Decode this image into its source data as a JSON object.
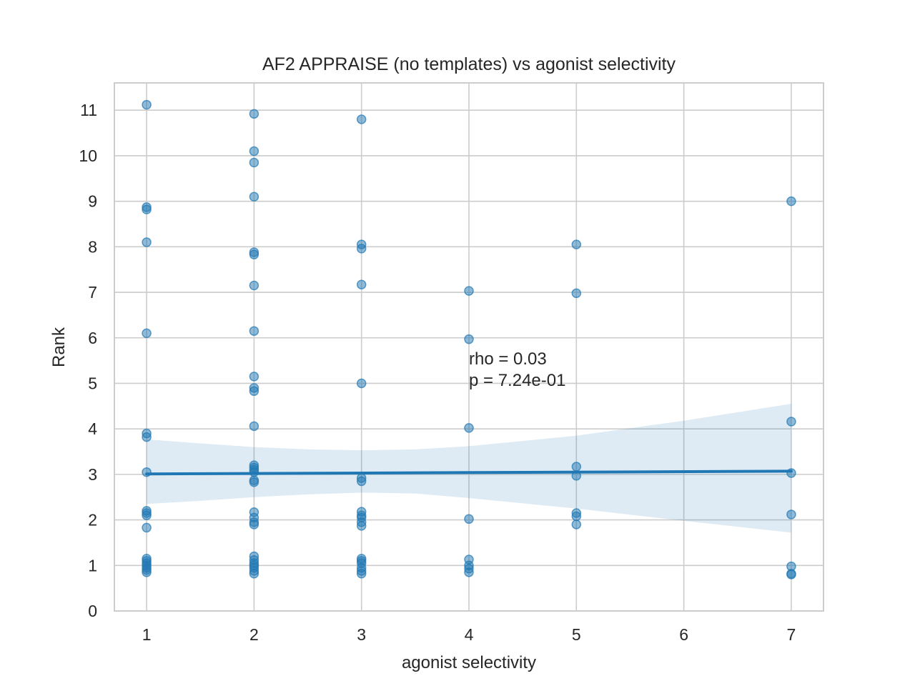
{
  "chart_data": {
    "type": "scatter",
    "title": "AF2 APPRAISE (no templates) vs agonist selectivity",
    "xlabel": "agonist selectivity",
    "ylabel": "Rank",
    "xlim": [
      0.7,
      7.3
    ],
    "ylim": [
      0,
      11.6
    ],
    "xticks": [
      1,
      2,
      3,
      4,
      5,
      6,
      7
    ],
    "yticks": [
      0,
      1,
      2,
      3,
      4,
      5,
      6,
      7,
      8,
      9,
      10,
      11
    ],
    "grid": true,
    "colors": {
      "points": "#1f77b4",
      "regression": "#1f77b4",
      "band": "#1f77b4",
      "grid": "#cccccc"
    },
    "points": [
      {
        "x": 1,
        "y": 11.12
      },
      {
        "x": 1,
        "y": 8.87
      },
      {
        "x": 1,
        "y": 8.82
      },
      {
        "x": 1,
        "y": 8.1
      },
      {
        "x": 1,
        "y": 6.1
      },
      {
        "x": 1,
        "y": 3.9
      },
      {
        "x": 1,
        "y": 3.82
      },
      {
        "x": 1,
        "y": 3.05
      },
      {
        "x": 1,
        "y": 2.2
      },
      {
        "x": 1,
        "y": 2.15
      },
      {
        "x": 1,
        "y": 2.1
      },
      {
        "x": 1,
        "y": 1.83
      },
      {
        "x": 1,
        "y": 1.15
      },
      {
        "x": 1,
        "y": 1.1
      },
      {
        "x": 1,
        "y": 1.05
      },
      {
        "x": 1,
        "y": 1.0
      },
      {
        "x": 1,
        "y": 0.95
      },
      {
        "x": 1,
        "y": 0.9
      },
      {
        "x": 1,
        "y": 0.85
      },
      {
        "x": 2,
        "y": 10.92
      },
      {
        "x": 2,
        "y": 10.1
      },
      {
        "x": 2,
        "y": 9.85
      },
      {
        "x": 2,
        "y": 9.1
      },
      {
        "x": 2,
        "y": 7.88
      },
      {
        "x": 2,
        "y": 7.83
      },
      {
        "x": 2,
        "y": 7.15
      },
      {
        "x": 2,
        "y": 6.15
      },
      {
        "x": 2,
        "y": 5.15
      },
      {
        "x": 2,
        "y": 4.9
      },
      {
        "x": 2,
        "y": 4.83
      },
      {
        "x": 2,
        "y": 4.06
      },
      {
        "x": 2,
        "y": 3.2
      },
      {
        "x": 2,
        "y": 3.15
      },
      {
        "x": 2,
        "y": 3.1
      },
      {
        "x": 2,
        "y": 3.05
      },
      {
        "x": 2,
        "y": 2.87
      },
      {
        "x": 2,
        "y": 2.83
      },
      {
        "x": 2,
        "y": 2.17
      },
      {
        "x": 2,
        "y": 2.05
      },
      {
        "x": 2,
        "y": 1.95
      },
      {
        "x": 2,
        "y": 1.9
      },
      {
        "x": 2,
        "y": 1.2
      },
      {
        "x": 2,
        "y": 1.12
      },
      {
        "x": 2,
        "y": 1.05
      },
      {
        "x": 2,
        "y": 1.0
      },
      {
        "x": 2,
        "y": 0.95
      },
      {
        "x": 2,
        "y": 0.88
      },
      {
        "x": 2,
        "y": 0.82
      },
      {
        "x": 3,
        "y": 10.8
      },
      {
        "x": 3,
        "y": 8.05
      },
      {
        "x": 3,
        "y": 7.96
      },
      {
        "x": 3,
        "y": 7.17
      },
      {
        "x": 3,
        "y": 5.0
      },
      {
        "x": 3,
        "y": 2.92
      },
      {
        "x": 3,
        "y": 2.85
      },
      {
        "x": 3,
        "y": 2.18
      },
      {
        "x": 3,
        "y": 2.1
      },
      {
        "x": 3,
        "y": 2.05
      },
      {
        "x": 3,
        "y": 1.95
      },
      {
        "x": 3,
        "y": 1.87
      },
      {
        "x": 3,
        "y": 1.15
      },
      {
        "x": 3,
        "y": 1.1
      },
      {
        "x": 3,
        "y": 1.05
      },
      {
        "x": 3,
        "y": 0.95
      },
      {
        "x": 3,
        "y": 0.88
      },
      {
        "x": 3,
        "y": 0.82
      },
      {
        "x": 4,
        "y": 7.03
      },
      {
        "x": 4,
        "y": 5.97
      },
      {
        "x": 4,
        "y": 4.02
      },
      {
        "x": 4,
        "y": 2.02
      },
      {
        "x": 4,
        "y": 1.13
      },
      {
        "x": 4,
        "y": 1.0
      },
      {
        "x": 4,
        "y": 0.93
      },
      {
        "x": 4,
        "y": 0.85
      },
      {
        "x": 5,
        "y": 8.05
      },
      {
        "x": 5,
        "y": 6.98
      },
      {
        "x": 5,
        "y": 3.17
      },
      {
        "x": 5,
        "y": 2.97
      },
      {
        "x": 5,
        "y": 2.15
      },
      {
        "x": 5,
        "y": 2.08
      },
      {
        "x": 5,
        "y": 1.9
      },
      {
        "x": 7,
        "y": 9.0
      },
      {
        "x": 7,
        "y": 4.16
      },
      {
        "x": 7,
        "y": 3.03
      },
      {
        "x": 7,
        "y": 2.12
      },
      {
        "x": 7,
        "y": 0.98
      },
      {
        "x": 7,
        "y": 0.82
      },
      {
        "x": 7,
        "y": 0.8
      }
    ],
    "regression": {
      "line": [
        {
          "x": 1,
          "y": 3.01
        },
        {
          "x": 7,
          "y": 3.07
        }
      ],
      "ci_upper": [
        {
          "x": 1,
          "y": 3.77
        },
        {
          "x": 1.5,
          "y": 3.68
        },
        {
          "x": 2,
          "y": 3.6
        },
        {
          "x": 2.5,
          "y": 3.55
        },
        {
          "x": 3,
          "y": 3.53
        },
        {
          "x": 3.5,
          "y": 3.55
        },
        {
          "x": 4,
          "y": 3.62
        },
        {
          "x": 5,
          "y": 3.85
        },
        {
          "x": 6,
          "y": 4.18
        },
        {
          "x": 7,
          "y": 4.55
        }
      ],
      "ci_lower": [
        {
          "x": 1,
          "y": 2.35
        },
        {
          "x": 1.5,
          "y": 2.42
        },
        {
          "x": 2,
          "y": 2.5
        },
        {
          "x": 2.5,
          "y": 2.56
        },
        {
          "x": 3,
          "y": 2.6
        },
        {
          "x": 3.5,
          "y": 2.58
        },
        {
          "x": 4,
          "y": 2.48
        },
        {
          "x": 5,
          "y": 2.25
        },
        {
          "x": 6,
          "y": 1.98
        },
        {
          "x": 7,
          "y": 1.72
        }
      ]
    },
    "annotation": {
      "rho_text": "rho = 0.03",
      "p_text": "p = 7.24e-01",
      "x": 4,
      "y": 5.6
    }
  }
}
